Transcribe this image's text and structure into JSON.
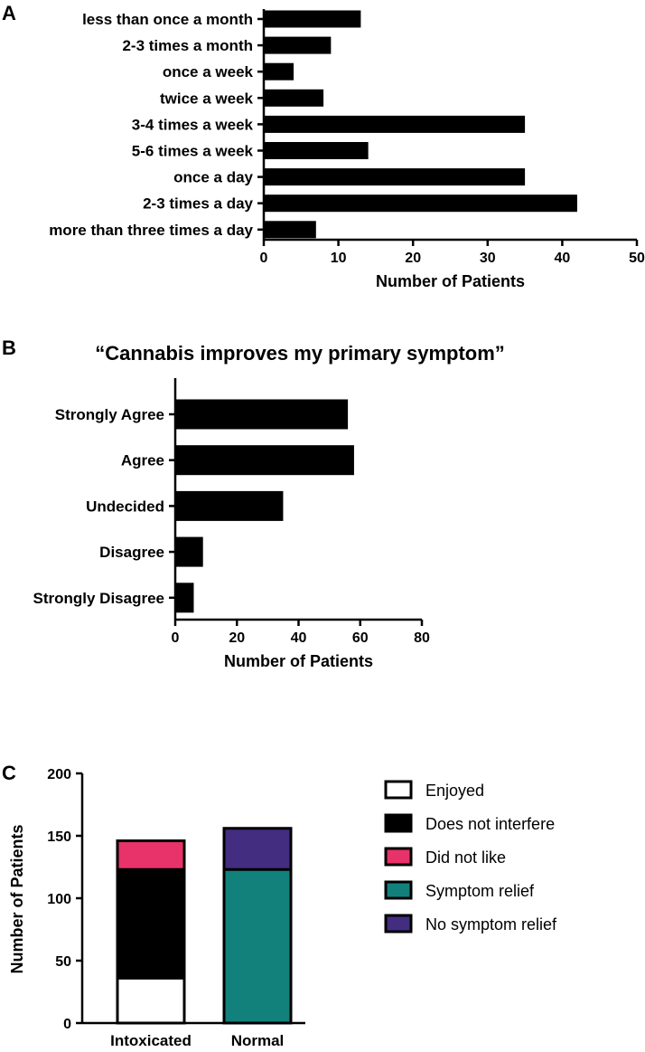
{
  "colors": {
    "bar": "#000000",
    "enjoyed": "#ffffff",
    "does_not_interfere": "#000000",
    "did_not_like": "#e8326a",
    "symptom_relief": "#12817c",
    "no_symptom_relief": "#432d80"
  },
  "chart_data": [
    {
      "panel": "A",
      "type": "bar",
      "orientation": "horizontal",
      "title": "",
      "categories": [
        "less than once a month",
        "2-3 times a month",
        "once a week",
        "twice a week",
        "3-4 times a week",
        "5-6 times a week",
        "once a day",
        "2-3 times a day",
        "more than three times a day"
      ],
      "values": [
        13,
        9,
        4,
        8,
        35,
        14,
        35,
        42,
        7
      ],
      "xlabel": "Number of Patients",
      "ylabel": "",
      "xlim": [
        0,
        50
      ],
      "xticks": [
        0,
        10,
        20,
        30,
        40,
        50
      ]
    },
    {
      "panel": "B",
      "type": "bar",
      "orientation": "horizontal",
      "title": "“Cannabis improves my primary symptom”",
      "categories": [
        "Strongly Agree",
        "Agree",
        "Undecided",
        "Disagree",
        "Strongly Disagree"
      ],
      "values": [
        56,
        58,
        35,
        9,
        6
      ],
      "xlabel": "Number of Patients",
      "ylabel": "",
      "xlim": [
        0,
        80
      ],
      "xticks": [
        0,
        20,
        40,
        60,
        80
      ]
    },
    {
      "panel": "C",
      "type": "bar",
      "stacked": true,
      "title": "",
      "categories": [
        "Intoxicated",
        "Normal"
      ],
      "series": [
        {
          "name": "Enjoyed",
          "color_key": "enjoyed",
          "values": [
            36,
            0
          ]
        },
        {
          "name": "Does not interfere",
          "color_key": "does_not_interfere",
          "values": [
            87,
            0
          ]
        },
        {
          "name": "Did not like",
          "color_key": "did_not_like",
          "values": [
            23,
            0
          ]
        },
        {
          "name": "Symptom relief",
          "color_key": "symptom_relief",
          "values": [
            0,
            123
          ]
        },
        {
          "name": "No symptom relief",
          "color_key": "no_symptom_relief",
          "values": [
            0,
            33
          ]
        }
      ],
      "xlabel": "",
      "ylabel": "Number of Patients",
      "ylim": [
        0,
        200
      ],
      "yticks": [
        0,
        50,
        100,
        150,
        200
      ],
      "legend": [
        "Enjoyed",
        "Does not interfere",
        "Did not like",
        "Symptom relief",
        "No symptom relief"
      ],
      "legend_position": "right"
    }
  ]
}
